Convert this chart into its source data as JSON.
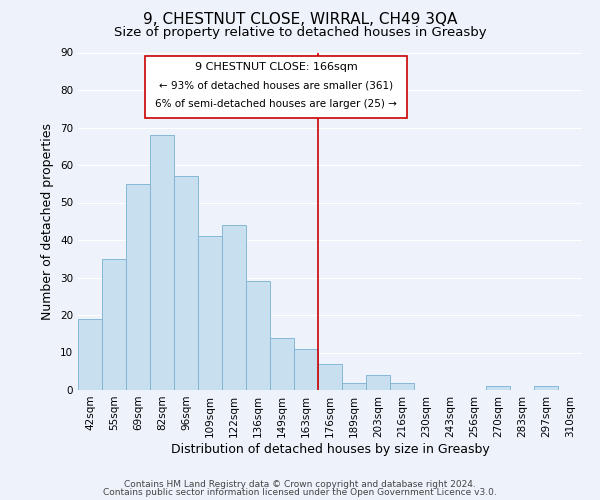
{
  "title": "9, CHESTNUT CLOSE, WIRRAL, CH49 3QA",
  "subtitle": "Size of property relative to detached houses in Greasby",
  "xlabel": "Distribution of detached houses by size in Greasby",
  "ylabel": "Number of detached properties",
  "bin_labels": [
    "42sqm",
    "55sqm",
    "69sqm",
    "82sqm",
    "96sqm",
    "109sqm",
    "122sqm",
    "136sqm",
    "149sqm",
    "163sqm",
    "176sqm",
    "189sqm",
    "203sqm",
    "216sqm",
    "230sqm",
    "243sqm",
    "256sqm",
    "270sqm",
    "283sqm",
    "297sqm",
    "310sqm"
  ],
  "bar_heights": [
    19,
    35,
    55,
    68,
    57,
    41,
    44,
    29,
    14,
    11,
    7,
    2,
    4,
    2,
    0,
    0,
    0,
    1,
    0,
    1,
    0
  ],
  "bar_color": "#c8dff0",
  "bar_edge_color": "#7ab0d4",
  "vline_x": 9.5,
  "vline_color": "#cc0000",
  "ylim": [
    0,
    90
  ],
  "yticks": [
    0,
    10,
    20,
    30,
    40,
    50,
    60,
    70,
    80,
    90
  ],
  "annotation_title": "9 CHESTNUT CLOSE: 166sqm",
  "annotation_line1": "← 93% of detached houses are smaller (361)",
  "annotation_line2": "6% of semi-detached houses are larger (25) →",
  "annotation_box_color": "#ffffff",
  "annotation_box_edge": "#cc0000",
  "footnote1": "Contains HM Land Registry data © Crown copyright and database right 2024.",
  "footnote2": "Contains public sector information licensed under the Open Government Licence v3.0.",
  "background_color": "#eef2fb",
  "grid_color": "#ffffff",
  "title_fontsize": 11,
  "subtitle_fontsize": 9.5,
  "axis_label_fontsize": 9,
  "tick_fontsize": 7.5,
  "footnote_fontsize": 6.5,
  "ann_title_fontsize": 8,
  "ann_text_fontsize": 7.5
}
